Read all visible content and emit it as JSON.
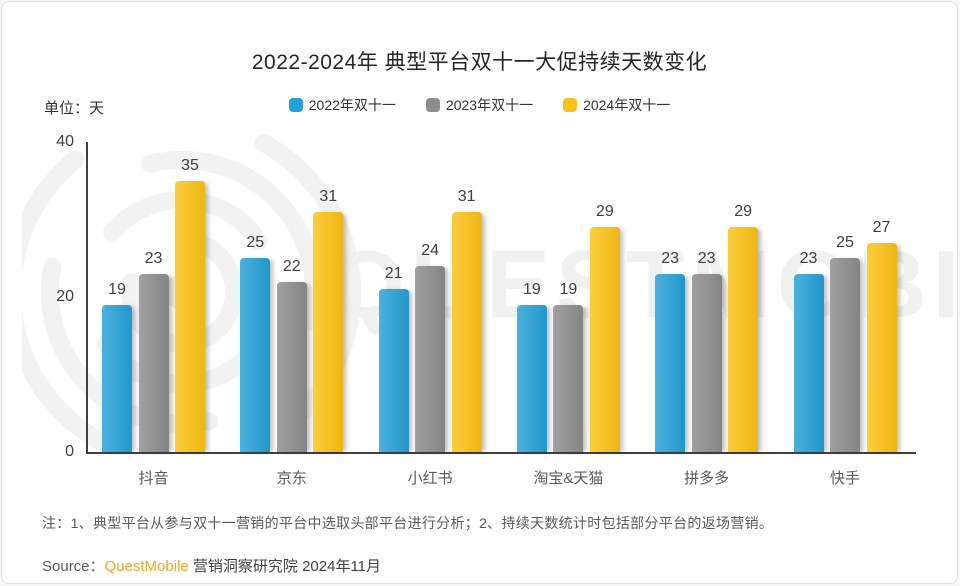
{
  "header": {
    "title": "2022-2024年 典型平台双十一大促持续天数变化"
  },
  "meta": {
    "unit_label": "单位：天"
  },
  "legend": [
    {
      "label": "2022年双十一",
      "color": "#23a0d7"
    },
    {
      "label": "2023年双十一",
      "color": "#8c8c8c"
    },
    {
      "label": "2024年双十一",
      "color": "#fdc213"
    }
  ],
  "chart_data": {
    "type": "bar",
    "title": "2022-2024年 典型平台双十一大促持续天数变化",
    "unit": "天",
    "categories": [
      "抖音",
      "京东",
      "小红书",
      "淘宝&天猫",
      "拼多多",
      "快手"
    ],
    "series": [
      {
        "name": "2022年双十一",
        "color": "#23a0d7",
        "values": [
          19,
          25,
          21,
          19,
          23,
          23
        ]
      },
      {
        "name": "2023年双十一",
        "color": "#8c8c8c",
        "values": [
          23,
          22,
          24,
          19,
          23,
          25
        ]
      },
      {
        "name": "2024年双十一",
        "color": "#fdc213",
        "values": [
          35,
          31,
          31,
          29,
          29,
          27
        ]
      }
    ],
    "xlabel": "",
    "ylabel": "单位：天",
    "ylim": [
      0,
      40
    ],
    "yticks": [
      0,
      20,
      40
    ],
    "grid": false,
    "legend_position": "top-center",
    "value_labels": true
  },
  "footnote": "注：1、典型平台从参与双十一营销的平台中选取头部平台进行分析；2、持续天数统计时包括部分平台的返场营销。",
  "source": {
    "prefix": "Source：",
    "brand": "QuestMobile",
    "rest": " 营销洞察研究院 2024年11月"
  },
  "watermark": {
    "text": "QUESTMOBILE"
  },
  "colors": {
    "axis": "#404040",
    "value_label": "#3f3f3f",
    "category_label": "#595959",
    "footnote": "#595959",
    "source_brand": "#f5a623",
    "watermark": "#f0f0f0"
  }
}
